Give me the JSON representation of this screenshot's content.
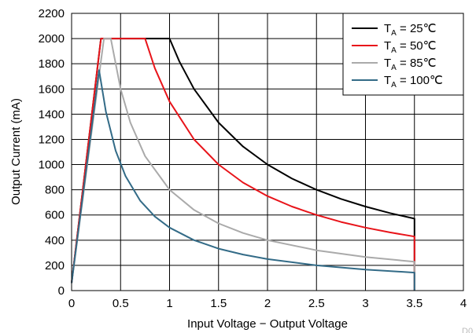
{
  "chart_data": {
    "type": "line",
    "xlabel": "Input Voltage − Output Voltage",
    "ylabel": "Output Current (mA)",
    "xlim": [
      0,
      4
    ],
    "ylim": [
      0,
      2200
    ],
    "xticks": [
      0,
      0.5,
      1,
      1.5,
      2,
      2.5,
      3,
      3.5,
      4
    ],
    "xtick_labels": [
      "0",
      "0.5",
      "1",
      "1.5",
      "2",
      "2.5",
      "3",
      "3.5",
      "4"
    ],
    "yticks": [
      0,
      200,
      400,
      600,
      800,
      1000,
      1200,
      1400,
      1600,
      1800,
      2000,
      2200
    ],
    "ytick_labels": [
      "0",
      "200",
      "400",
      "600",
      "800",
      "1000",
      "1200",
      "1400",
      "1600",
      "1800",
      "2000",
      "2200"
    ],
    "grid": true,
    "legend_position": "top-right",
    "corner_tag": "D0",
    "series": [
      {
        "name": "T_A = 25℃",
        "label_main": "T",
        "label_sub": "A",
        "label_rest": " = 25℃",
        "color": "#000000",
        "x": [
          0,
          0.3,
          0.35,
          1.0,
          1.1,
          1.25,
          1.5,
          1.75,
          2.0,
          2.25,
          2.5,
          2.75,
          3.0,
          3.25,
          3.5,
          3.5
        ],
        "y": [
          60,
          2000,
          2000,
          2000,
          1818,
          1600,
          1333,
          1143,
          1000,
          889,
          800,
          727,
          667,
          615,
          571,
          0
        ]
      },
      {
        "name": "T_A = 50℃",
        "label_main": "T",
        "label_sub": "A",
        "label_rest": " = 50℃",
        "color": "#e8141a",
        "x": [
          0,
          0.3,
          0.35,
          0.75,
          0.85,
          1.0,
          1.25,
          1.5,
          1.75,
          2.0,
          2.25,
          2.5,
          2.75,
          3.0,
          3.25,
          3.5,
          3.5
        ],
        "y": [
          60,
          2000,
          2000,
          2000,
          1765,
          1500,
          1200,
          1000,
          857,
          750,
          667,
          600,
          545,
          500,
          462,
          429,
          0
        ]
      },
      {
        "name": "T_A = 85℃",
        "label_main": "T",
        "label_sub": "A",
        "label_rest": " = 85℃",
        "color": "#aaaaaa",
        "x": [
          0,
          0.33,
          0.4,
          0.5,
          0.6,
          0.75,
          1.0,
          1.25,
          1.5,
          1.75,
          2.0,
          2.5,
          3.0,
          3.5,
          3.5
        ],
        "y": [
          60,
          2000,
          2000,
          1600,
          1333,
          1067,
          800,
          640,
          533,
          457,
          400,
          320,
          267,
          229,
          0
        ]
      },
      {
        "name": "T_A = 100℃",
        "label_main": "T",
        "label_sub": "A",
        "label_rest": " = 100℃",
        "color": "#336b87",
        "x": [
          0,
          0.28,
          0.35,
          0.45,
          0.55,
          0.7,
          0.85,
          1.0,
          1.25,
          1.5,
          1.75,
          2.0,
          2.5,
          3.0,
          3.5,
          3.5
        ],
        "y": [
          60,
          1750,
          1420,
          1110,
          909,
          714,
          588,
          500,
          400,
          333,
          286,
          250,
          200,
          167,
          143,
          0
        ]
      }
    ]
  }
}
